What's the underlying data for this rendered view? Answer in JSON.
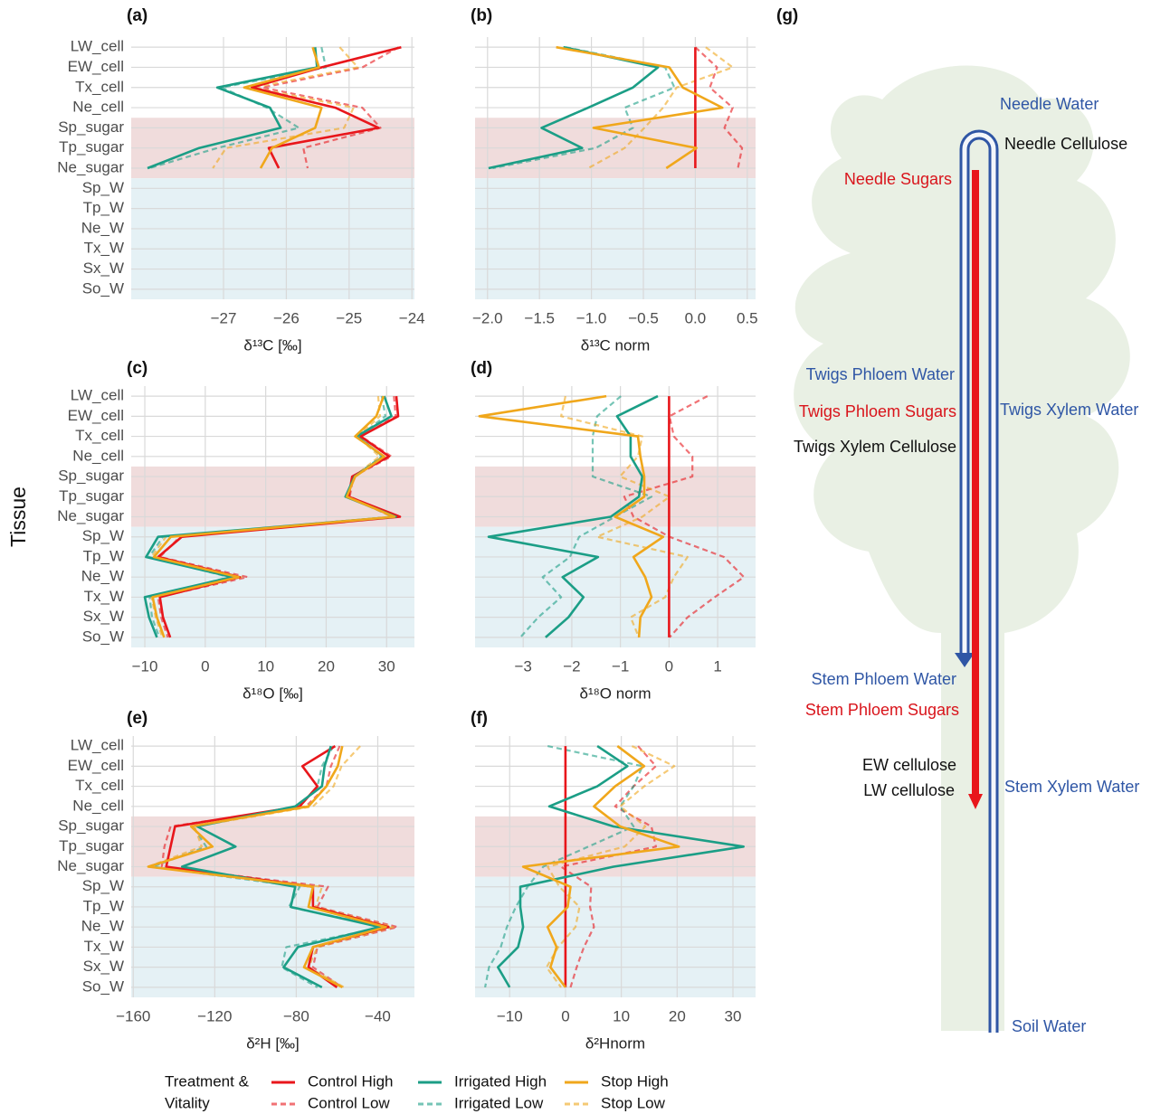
{
  "chart_data": [
    {
      "type": "line",
      "label": "(a)",
      "xlabel": "δ¹³C [‰]",
      "categories": [
        "LW_cell",
        "EW_cell",
        "Tx_cell",
        "Ne_cell",
        "Sp_sugar",
        "Tp_sugar",
        "Ne_sugar",
        "Sp_W",
        "Tp_W",
        "Ne_W",
        "Tx_W",
        "Sx_W",
        "So_W"
      ],
      "xlim": [
        -28.47,
        -23.96
      ],
      "xticks": [
        {
          "value": -27,
          "label": "−27"
        },
        {
          "value": -26,
          "label": "−26"
        },
        {
          "value": -25,
          "label": "−25"
        },
        {
          "value": -24,
          "label": "−24"
        }
      ],
      "grid": true,
      "series": [
        {
          "values": [
            -24.17,
            -25.44,
            -26.55,
            -25.22,
            -24.53,
            -26.28,
            -26.12,
            null,
            null,
            null,
            null,
            null,
            null
          ]
        },
        {
          "values": [
            -24.21,
            -24.79,
            -26.38,
            -24.79,
            -24.5,
            -25.73,
            -25.66,
            null,
            null,
            null,
            null,
            null,
            null
          ]
        },
        {
          "values": [
            -25.54,
            -25.51,
            -27.1,
            -26.26,
            -26.09,
            -27.39,
            -28.21,
            null,
            null,
            null,
            null,
            null,
            null
          ]
        },
        {
          "values": [
            -25.44,
            -25.37,
            -27.03,
            -26.31,
            -25.8,
            -27.1,
            -28.18,
            null,
            null,
            null,
            null,
            null,
            null
          ]
        },
        {
          "values": [
            -25.58,
            -25.48,
            -26.67,
            -25.44,
            -25.54,
            -26.23,
            -26.41,
            null,
            null,
            null,
            null,
            null,
            null
          ]
        },
        {
          "values": [
            -25.15,
            -24.86,
            -26.52,
            -24.93,
            -25.08,
            -26.96,
            -27.17,
            null,
            null,
            null,
            null,
            null,
            null
          ]
        }
      ]
    },
    {
      "type": "line",
      "label": "(b)",
      "xlabel": "δ¹³C norm",
      "xlim": [
        -2.12,
        0.58
      ],
      "xticks": [
        {
          "value": -2.0,
          "label": "−2.0"
        },
        {
          "value": -1.5,
          "label": "−1.5"
        },
        {
          "value": -1.0,
          "label": "−1.0"
        },
        {
          "value": -0.5,
          "label": "−0.5"
        },
        {
          "value": 0,
          "label": "0.0"
        },
        {
          "value": 0.5,
          "label": "0.5"
        }
      ],
      "grid": true,
      "series": [
        {
          "values": [
            0,
            0,
            0,
            0,
            0,
            0,
            0,
            null,
            null,
            null,
            null,
            null,
            null
          ]
        },
        {
          "values": [
            0,
            0.21,
            0.14,
            0.36,
            0.28,
            0.45,
            0.41,
            null,
            null,
            null,
            null,
            null,
            null
          ]
        },
        {
          "values": [
            -1.27,
            -0.36,
            -0.6,
            -1.03,
            -1.48,
            -1.09,
            -1.99,
            null,
            null,
            null,
            null,
            null,
            null
          ]
        },
        {
          "values": [
            -1.25,
            -0.29,
            -0.2,
            -0.68,
            -0.6,
            -0.96,
            -1.95,
            null,
            null,
            null,
            null,
            null,
            null
          ]
        },
        {
          "values": [
            -1.34,
            -0.25,
            -0.12,
            0.26,
            -0.98,
            0.01,
            -0.28,
            null,
            null,
            null,
            null,
            null,
            null
          ]
        },
        {
          "values": [
            0.1,
            0.36,
            -0.18,
            -0.31,
            -0.49,
            -0.68,
            -1.03,
            null,
            null,
            null,
            null,
            null,
            null
          ]
        }
      ]
    },
    {
      "type": "line",
      "label": "(c)",
      "xlabel": "δ¹⁸O [‰]",
      "ylabel": "Tissue",
      "categories": [
        "LW_cell",
        "EW_cell",
        "Tx_cell",
        "Ne_cell",
        "Sp_sugar",
        "Tp_sugar",
        "Ne_sugar",
        "Sp_W",
        "Tp_W",
        "Ne_W",
        "Tx_W",
        "Sx_W",
        "So_W"
      ],
      "xlim": [
        -12.25,
        34.6
      ],
      "xticks": [
        {
          "value": -10,
          "label": "−10"
        },
        0,
        10,
        20,
        30
      ],
      "grid": true,
      "series": [
        {
          "values": [
            31.6,
            31.9,
            25.7,
            30.4,
            24.3,
            23.7,
            32.2,
            -3.9,
            -7.8,
            5.7,
            -7.5,
            -7.0,
            -5.8
          ]
        },
        {
          "values": [
            31.2,
            31.5,
            25.8,
            30.8,
            24.5,
            23.9,
            31.8,
            -4.2,
            -7.5,
            7.0,
            -7.8,
            -7.3,
            -6.2
          ]
        },
        {
          "values": [
            29.6,
            30.8,
            25.0,
            29.5,
            24.7,
            23.2,
            31.5,
            -7.8,
            -9.8,
            4.5,
            -10.0,
            -9.3,
            -8.0
          ]
        },
        {
          "values": [
            29.2,
            29.8,
            25.4,
            29.2,
            24.6,
            23.5,
            31.0,
            -7.0,
            -9.3,
            4.0,
            -9.2,
            -8.8,
            -7.6
          ]
        },
        {
          "values": [
            29.5,
            28.3,
            24.8,
            29.6,
            24.8,
            23.4,
            31.3,
            -5.7,
            -8.5,
            5.5,
            -8.7,
            -8.0,
            -6.8
          ]
        },
        {
          "values": [
            28.6,
            28.9,
            25.2,
            28.8,
            24.6,
            23.7,
            30.9,
            -6.5,
            -8.9,
            6.0,
            -8.9,
            -8.2,
            -7.1
          ]
        }
      ]
    },
    {
      "type": "line",
      "label": "(d)",
      "xlabel": "δ¹⁸O norm",
      "xlim": [
        -3.99,
        1.78
      ],
      "xticks": [
        {
          "value": -3,
          "label": "−3"
        },
        {
          "value": -2,
          "label": "−2"
        },
        {
          "value": -1,
          "label": "−1"
        },
        0,
        1
      ],
      "grid": true,
      "series": [
        {
          "values": [
            0,
            0,
            0,
            0,
            0,
            0,
            0,
            0,
            0,
            0,
            0,
            0,
            0
          ]
        },
        {
          "values": [
            0.79,
            0.01,
            0.1,
            0.48,
            0.48,
            -0.92,
            -0.73,
            0.01,
            1.13,
            1.54,
            0.94,
            0.38,
            0.01
          ]
        },
        {
          "values": [
            -0.23,
            -1.07,
            -0.79,
            -0.79,
            -0.55,
            -0.62,
            -1.2,
            -3.71,
            -1.46,
            -2.19,
            -1.76,
            -2.07,
            -2.54
          ]
        },
        {
          "values": [
            -0.99,
            -1.48,
            -1.57,
            -1.57,
            -1.57,
            -0.36,
            -1.11,
            -1.85,
            -2.04,
            -2.6,
            -2.22,
            -2.69,
            -3.06
          ]
        },
        {
          "values": [
            -1.29,
            -3.9,
            -0.64,
            -0.59,
            -0.51,
            -0.51,
            -1.11,
            -0.12,
            -0.73,
            -0.49,
            -0.36,
            -0.59,
            -0.62
          ]
        },
        {
          "values": [
            -2.13,
            -2.22,
            -0.55,
            -0.64,
            -1.01,
            0.01,
            -0.55,
            -1.48,
            0.38,
            0.1,
            -0.08,
            -0.79,
            -0.62
          ]
        }
      ]
    },
    {
      "type": "line",
      "label": "(e)",
      "xlabel": "δ²H [‰]",
      "categories": [
        "LW_cell",
        "EW_cell",
        "Tx_cell",
        "Ne_cell",
        "Sp_sugar",
        "Tp_sugar",
        "Ne_sugar",
        "Sp_W",
        "Tp_W",
        "Ne_W",
        "Tx_W",
        "Sx_W",
        "So_W"
      ],
      "xlim": [
        -161,
        -22
      ],
      "xticks": [
        {
          "value": -160,
          "label": "−160"
        },
        {
          "value": -120,
          "label": "−120"
        },
        {
          "value": -80,
          "label": "−80"
        },
        {
          "value": -40,
          "label": "−40"
        }
      ],
      "grid": true,
      "series": [
        {
          "values": [
            -60.9,
            -77.0,
            -69.6,
            -78.3,
            -139.5,
            -141.7,
            -143.8,
            -71.8,
            -71.8,
            -34.7,
            -71.8,
            -74,
            -60
          ]
        },
        {
          "values": [
            -58.7,
            -63,
            -65.2,
            -75.3,
            -141.7,
            -144.7,
            -146,
            -64.4,
            -69.6,
            -30.3,
            -69.6,
            -71.8,
            -57.4
          ]
        },
        {
          "values": [
            -63,
            -66.1,
            -67.4,
            -80.5,
            -128.6,
            -109.8,
            -136,
            -80.5,
            -82.7,
            -39,
            -79.2,
            -86.2,
            -67.4
          ]
        },
        {
          "values": [
            -61.7,
            -67.4,
            -69.6,
            -78.3,
            -130.7,
            -124.2,
            -150.4,
            -78.3,
            -83.6,
            -36.9,
            -84.9,
            -87.1,
            -69.6
          ]
        },
        {
          "values": [
            -57.4,
            -59.6,
            -65.2,
            -74,
            -131.6,
            -121.1,
            -152.6,
            -71.8,
            -74,
            -36,
            -71.8,
            -76.2,
            -57.4
          ]
        },
        {
          "values": [
            -48.6,
            -57.8,
            -61.7,
            -71.8,
            -129.9,
            -126.4,
            -152.6,
            -67.4,
            -70.5,
            -32.5,
            -69.6,
            -74,
            -56.5
          ]
        }
      ]
    },
    {
      "type": "line",
      "label": "(f)",
      "xlabel": "δ²Hnorm",
      "xlim": [
        -16.2,
        34.05
      ],
      "xticks": [
        {
          "value": -10,
          "label": "−10"
        },
        0,
        10,
        20,
        30
      ],
      "grid": true,
      "series": [
        {
          "values": [
            0,
            0,
            0,
            0,
            0,
            0,
            0,
            0,
            0,
            0,
            0,
            0,
            0
          ]
        },
        {
          "values": [
            13,
            16.2,
            12.2,
            8.9,
            15.4,
            16.2,
            -0.8,
            4.6,
            4.4,
            5.1,
            3.3,
            2,
            0.9
          ]
        },
        {
          "values": [
            5.7,
            11.1,
            5.7,
            -2.9,
            8.6,
            31.9,
            8.6,
            -8.1,
            -8.1,
            -7.6,
            -8.5,
            -12.1,
            -10
          ]
        },
        {
          "values": [
            -3.2,
            13.8,
            12.2,
            9.8,
            12.2,
            4.1,
            -4,
            -6.8,
            -8.9,
            -10.5,
            -11.6,
            -13.7,
            -14.4
          ]
        },
        {
          "values": [
            9.3,
            14.1,
            8.9,
            5.1,
            9.8,
            20.3,
            -7.6,
            0.9,
            0.4,
            -3.2,
            -1.6,
            -2.7,
            0
          ]
        },
        {
          "values": [
            11.9,
            19.5,
            14.1,
            9.8,
            14.3,
            10.6,
            -3.2,
            -1.1,
            2.5,
            1.8,
            -1.3,
            -3.4,
            -0.8
          ]
        }
      ]
    }
  ],
  "legend": {
    "title": [
      "Treatment &",
      "Vitality"
    ],
    "entries": [
      {
        "name": "Control High",
        "color": "#e8161b",
        "dashed": false
      },
      {
        "name": "Control Low",
        "color": "#e8161b",
        "dashed": true
      },
      {
        "name": "Irrigated High",
        "color": "#1b9e86",
        "dashed": false
      },
      {
        "name": "Irrigated Low",
        "color": "#1b9e86",
        "dashed": true
      },
      {
        "name": "Stop High",
        "color": "#f0a71b",
        "dashed": false
      },
      {
        "name": "Stop Low",
        "color": "#f0a71b",
        "dashed": true
      }
    ]
  },
  "diagram": {
    "label": "(g)",
    "labels": [
      {
        "text": "Needle Water",
        "kind": "water"
      },
      {
        "text": "Needle Cellulose",
        "kind": "cellulose"
      },
      {
        "text": "Needle Sugars",
        "kind": "sugar"
      },
      {
        "text": "Twigs Phloem Water",
        "kind": "water"
      },
      {
        "text": "Twigs Xylem Water",
        "kind": "water"
      },
      {
        "text": "Twigs Phloem Sugars",
        "kind": "sugar"
      },
      {
        "text": "Twigs Xylem Cellulose",
        "kind": "cellulose"
      },
      {
        "text": "Stem Phloem Water",
        "kind": "water"
      },
      {
        "text": "Stem Phloem Sugars",
        "kind": "sugar"
      },
      {
        "text": "EW cellulose",
        "kind": "cellulose"
      },
      {
        "text": "LW cellulose",
        "kind": "cellulose"
      },
      {
        "text": "Stem Xylem Water",
        "kind": "water"
      },
      {
        "text": "Soil Water",
        "kind": "water"
      }
    ]
  }
}
